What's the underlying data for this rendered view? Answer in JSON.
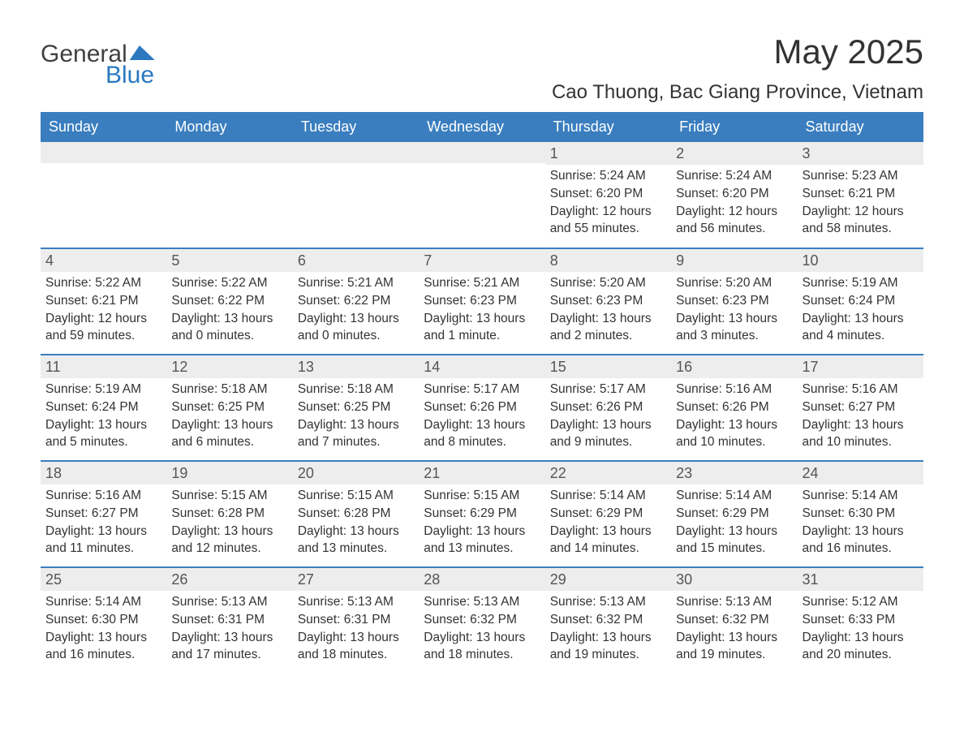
{
  "brand": {
    "text1": "General",
    "text2": "Blue",
    "color": "#2b78bf"
  },
  "title": "May 2025",
  "location": "Cao Thuong, Bac Giang Province, Vietnam",
  "colors": {
    "header_bg": "#3a7ebf",
    "header_text": "#ffffff",
    "daynum_bg": "#ededed",
    "daynum_text": "#555555",
    "body_text": "#333333",
    "row_border": "#3a7ebf",
    "background": "#ffffff"
  },
  "typography": {
    "title_fontsize": 42,
    "location_fontsize": 24,
    "weekday_fontsize": 18,
    "daynum_fontsize": 18,
    "body_fontsize": 15.5,
    "font_family": "Arial"
  },
  "layout": {
    "columns": 7,
    "rows": 5,
    "first_day_column_index": 4
  },
  "weekdays": [
    "Sunday",
    "Monday",
    "Tuesday",
    "Wednesday",
    "Thursday",
    "Friday",
    "Saturday"
  ],
  "labels": {
    "sunrise": "Sunrise:",
    "sunset": "Sunset:",
    "daylight": "Daylight:"
  },
  "weeks": [
    [
      null,
      null,
      null,
      null,
      {
        "day": "1",
        "sunrise": "5:24 AM",
        "sunset": "6:20 PM",
        "daylight": "12 hours and 55 minutes."
      },
      {
        "day": "2",
        "sunrise": "5:24 AM",
        "sunset": "6:20 PM",
        "daylight": "12 hours and 56 minutes."
      },
      {
        "day": "3",
        "sunrise": "5:23 AM",
        "sunset": "6:21 PM",
        "daylight": "12 hours and 58 minutes."
      }
    ],
    [
      {
        "day": "4",
        "sunrise": "5:22 AM",
        "sunset": "6:21 PM",
        "daylight": "12 hours and 59 minutes."
      },
      {
        "day": "5",
        "sunrise": "5:22 AM",
        "sunset": "6:22 PM",
        "daylight": "13 hours and 0 minutes."
      },
      {
        "day": "6",
        "sunrise": "5:21 AM",
        "sunset": "6:22 PM",
        "daylight": "13 hours and 0 minutes."
      },
      {
        "day": "7",
        "sunrise": "5:21 AM",
        "sunset": "6:23 PM",
        "daylight": "13 hours and 1 minute."
      },
      {
        "day": "8",
        "sunrise": "5:20 AM",
        "sunset": "6:23 PM",
        "daylight": "13 hours and 2 minutes."
      },
      {
        "day": "9",
        "sunrise": "5:20 AM",
        "sunset": "6:23 PM",
        "daylight": "13 hours and 3 minutes."
      },
      {
        "day": "10",
        "sunrise": "5:19 AM",
        "sunset": "6:24 PM",
        "daylight": "13 hours and 4 minutes."
      }
    ],
    [
      {
        "day": "11",
        "sunrise": "5:19 AM",
        "sunset": "6:24 PM",
        "daylight": "13 hours and 5 minutes."
      },
      {
        "day": "12",
        "sunrise": "5:18 AM",
        "sunset": "6:25 PM",
        "daylight": "13 hours and 6 minutes."
      },
      {
        "day": "13",
        "sunrise": "5:18 AM",
        "sunset": "6:25 PM",
        "daylight": "13 hours and 7 minutes."
      },
      {
        "day": "14",
        "sunrise": "5:17 AM",
        "sunset": "6:26 PM",
        "daylight": "13 hours and 8 minutes."
      },
      {
        "day": "15",
        "sunrise": "5:17 AM",
        "sunset": "6:26 PM",
        "daylight": "13 hours and 9 minutes."
      },
      {
        "day": "16",
        "sunrise": "5:16 AM",
        "sunset": "6:26 PM",
        "daylight": "13 hours and 10 minutes."
      },
      {
        "day": "17",
        "sunrise": "5:16 AM",
        "sunset": "6:27 PM",
        "daylight": "13 hours and 10 minutes."
      }
    ],
    [
      {
        "day": "18",
        "sunrise": "5:16 AM",
        "sunset": "6:27 PM",
        "daylight": "13 hours and 11 minutes."
      },
      {
        "day": "19",
        "sunrise": "5:15 AM",
        "sunset": "6:28 PM",
        "daylight": "13 hours and 12 minutes."
      },
      {
        "day": "20",
        "sunrise": "5:15 AM",
        "sunset": "6:28 PM",
        "daylight": "13 hours and 13 minutes."
      },
      {
        "day": "21",
        "sunrise": "5:15 AM",
        "sunset": "6:29 PM",
        "daylight": "13 hours and 13 minutes."
      },
      {
        "day": "22",
        "sunrise": "5:14 AM",
        "sunset": "6:29 PM",
        "daylight": "13 hours and 14 minutes."
      },
      {
        "day": "23",
        "sunrise": "5:14 AM",
        "sunset": "6:29 PM",
        "daylight": "13 hours and 15 minutes."
      },
      {
        "day": "24",
        "sunrise": "5:14 AM",
        "sunset": "6:30 PM",
        "daylight": "13 hours and 16 minutes."
      }
    ],
    [
      {
        "day": "25",
        "sunrise": "5:14 AM",
        "sunset": "6:30 PM",
        "daylight": "13 hours and 16 minutes."
      },
      {
        "day": "26",
        "sunrise": "5:13 AM",
        "sunset": "6:31 PM",
        "daylight": "13 hours and 17 minutes."
      },
      {
        "day": "27",
        "sunrise": "5:13 AM",
        "sunset": "6:31 PM",
        "daylight": "13 hours and 18 minutes."
      },
      {
        "day": "28",
        "sunrise": "5:13 AM",
        "sunset": "6:32 PM",
        "daylight": "13 hours and 18 minutes."
      },
      {
        "day": "29",
        "sunrise": "5:13 AM",
        "sunset": "6:32 PM",
        "daylight": "13 hours and 19 minutes."
      },
      {
        "day": "30",
        "sunrise": "5:13 AM",
        "sunset": "6:32 PM",
        "daylight": "13 hours and 19 minutes."
      },
      {
        "day": "31",
        "sunrise": "5:12 AM",
        "sunset": "6:33 PM",
        "daylight": "13 hours and 20 minutes."
      }
    ]
  ]
}
